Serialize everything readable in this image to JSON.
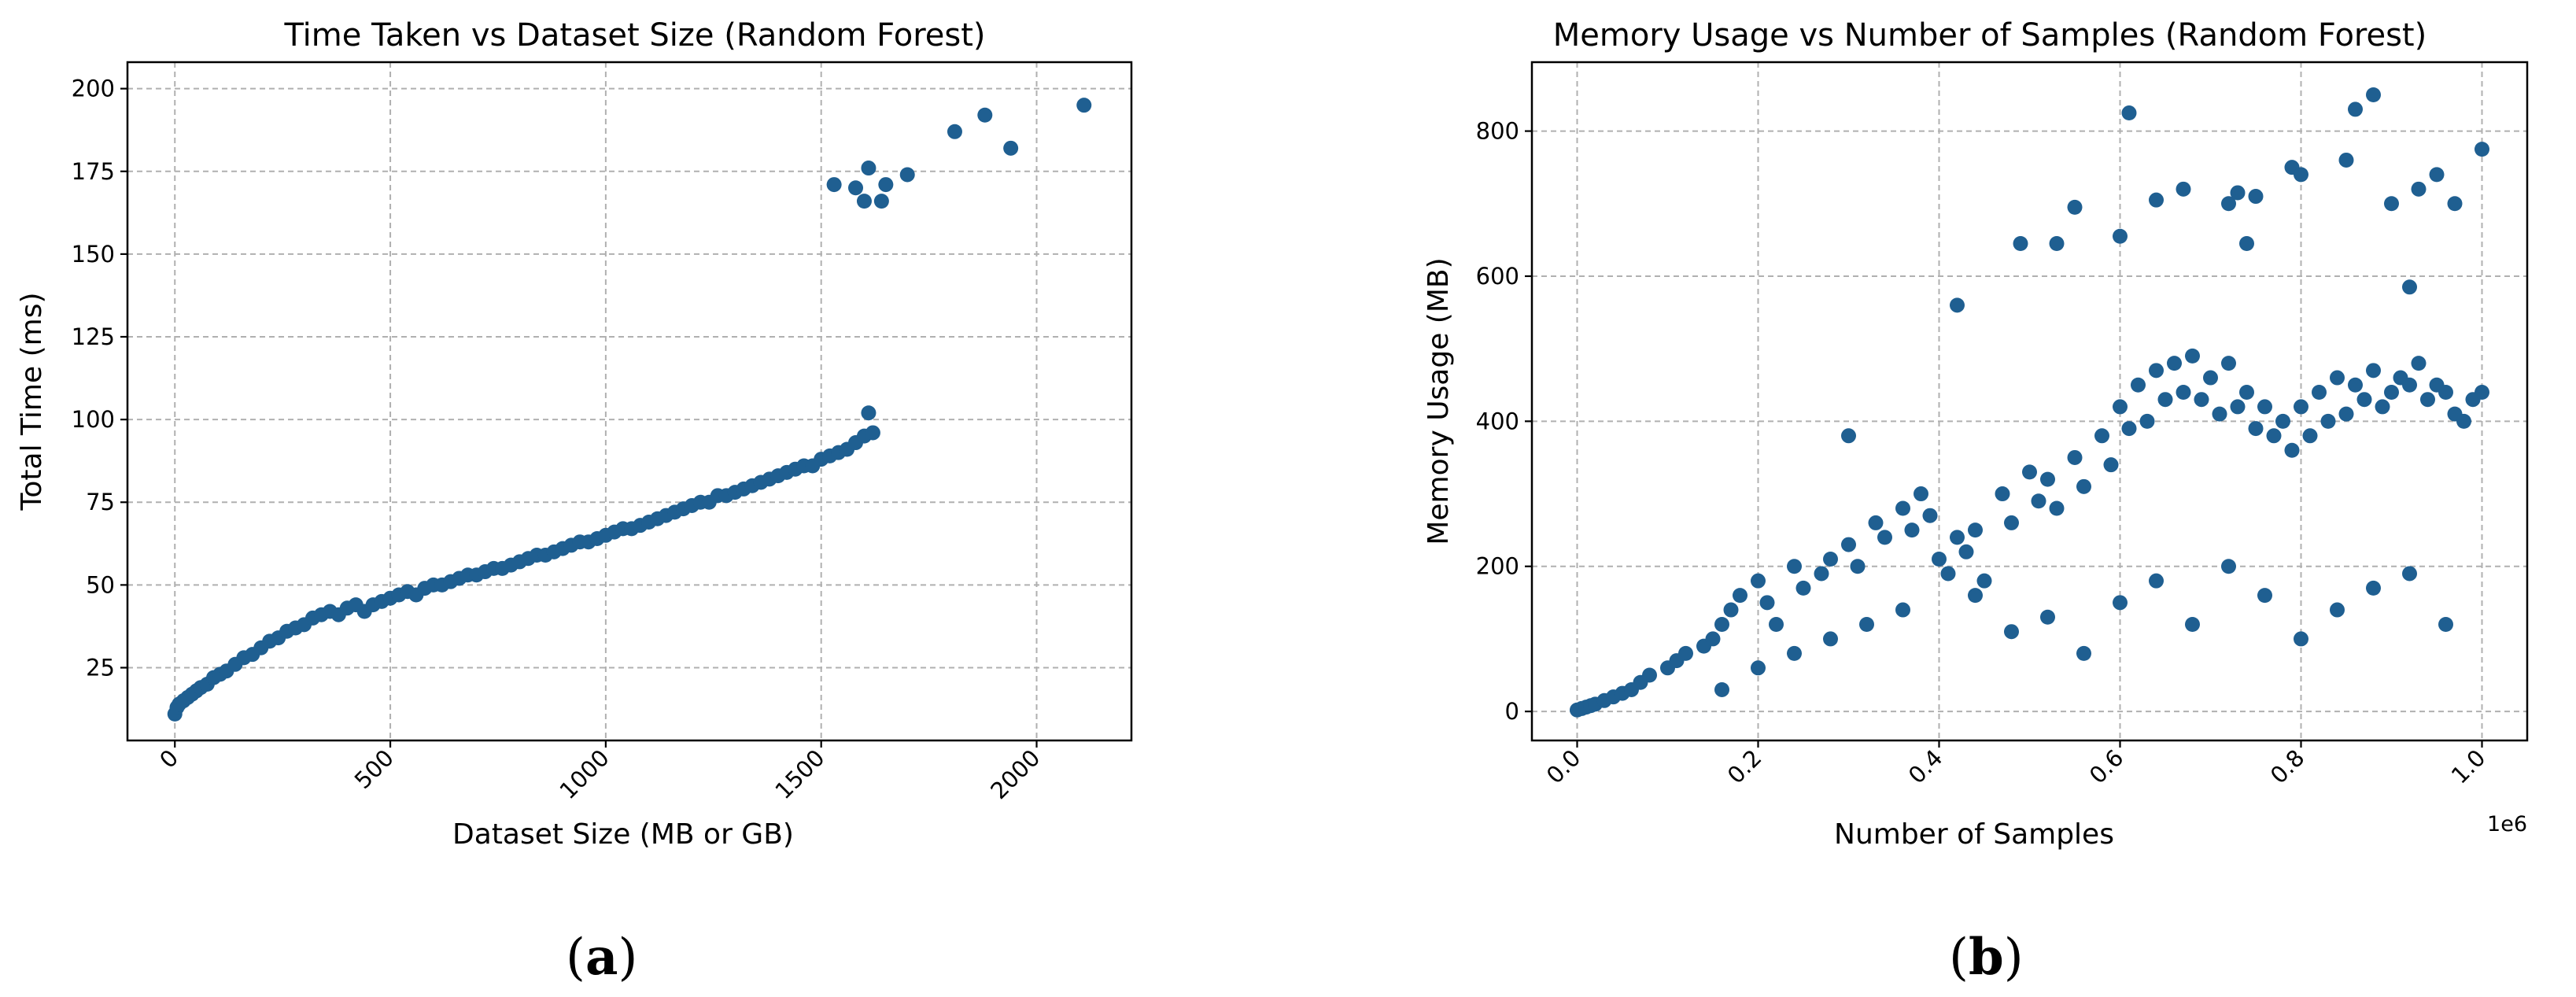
{
  "chart_data": [
    {
      "type": "scatter",
      "title": "Time Taken vs Dataset Size (Random Forest)",
      "xlabel": "Dataset Size (MB or GB)",
      "ylabel": "Total Time (ms)",
      "xlim": [
        -110,
        2220
      ],
      "ylim": [
        3,
        208
      ],
      "xticks": [
        0,
        500,
        1000,
        1500,
        2000
      ],
      "yticks": [
        25,
        50,
        75,
        100,
        125,
        150,
        175,
        200
      ],
      "grid": true,
      "marker_color": "#1f5f91",
      "caption": "(a)",
      "series": [
        {
          "x": [
            0,
            5,
            10,
            20,
            30,
            40,
            50,
            60,
            75,
            90,
            105,
            120,
            140,
            160,
            180,
            200,
            220,
            240,
            260,
            280,
            300,
            320,
            340,
            360,
            380,
            400,
            420,
            440,
            460,
            480,
            500,
            520,
            540,
            560,
            580,
            600,
            620,
            640,
            660,
            680,
            700,
            720,
            740,
            760,
            780,
            800,
            820,
            840,
            860,
            880,
            900,
            920,
            940,
            960,
            980,
            1000,
            1020,
            1040,
            1060,
            1080,
            1100,
            1120,
            1140,
            1160,
            1180,
            1200,
            1220,
            1240,
            1260,
            1280,
            1300,
            1320,
            1340,
            1360,
            1380,
            1400,
            1420,
            1440,
            1460,
            1480,
            1500,
            1520,
            1540,
            1560,
            1580,
            1600,
            1610,
            1530,
            1580,
            1600,
            1610,
            1640,
            1650,
            1700,
            1810,
            1880,
            1940,
            2110,
            1620
          ],
          "y": [
            11,
            13,
            14,
            15,
            16,
            17,
            18,
            19,
            20,
            22,
            23,
            24,
            26,
            28,
            29,
            31,
            33,
            34,
            36,
            37,
            38,
            40,
            41,
            42,
            41,
            43,
            44,
            42,
            44,
            45,
            46,
            47,
            48,
            47,
            49,
            50,
            50,
            51,
            52,
            53,
            53,
            54,
            55,
            55,
            56,
            57,
            58,
            59,
            59,
            60,
            61,
            62,
            63,
            63,
            64,
            65,
            66,
            67,
            67,
            68,
            69,
            70,
            71,
            72,
            73,
            74,
            75,
            75,
            77,
            77,
            78,
            79,
            80,
            81,
            82,
            83,
            84,
            85,
            86,
            86,
            88,
            89,
            90,
            91,
            93,
            95,
            102,
            171,
            170,
            166,
            176,
            166,
            171,
            174,
            187,
            192,
            182,
            195,
            96
          ]
        }
      ]
    },
    {
      "type": "scatter",
      "title": "Memory Usage vs Number of Samples (Random Forest)",
      "xlabel": "Number of Samples",
      "ylabel": "Memory Usage (MB)",
      "x_offset_label": "1e6",
      "xlim": [
        -0.05,
        1.05
      ],
      "ylim": [
        -40,
        895
      ],
      "xticks": [
        0.0,
        0.2,
        0.4,
        0.6,
        0.8,
        1.0
      ],
      "xtick_labels": [
        "0.0",
        "0.2",
        "0.4",
        "0.6",
        "0.8",
        "1.0"
      ],
      "yticks": [
        0,
        200,
        400,
        600,
        800
      ],
      "grid": true,
      "marker_color": "#1f5f91",
      "caption": "(b)",
      "series": [
        {
          "x": [
            0.0,
            0.005,
            0.01,
            0.015,
            0.02,
            0.03,
            0.04,
            0.05,
            0.06,
            0.07,
            0.08,
            0.1,
            0.11,
            0.12,
            0.14,
            0.15,
            0.16,
            0.17,
            0.18,
            0.2,
            0.21,
            0.22,
            0.24,
            0.25,
            0.27,
            0.28,
            0.3,
            0.31,
            0.33,
            0.34,
            0.36,
            0.37,
            0.38,
            0.39,
            0.4,
            0.41,
            0.42,
            0.43,
            0.44,
            0.45,
            0.47,
            0.48,
            0.5,
            0.51,
            0.52,
            0.53,
            0.55,
            0.56,
            0.58,
            0.59,
            0.6,
            0.61,
            0.62,
            0.63,
            0.64,
            0.65,
            0.66,
            0.67,
            0.68,
            0.69,
            0.7,
            0.71,
            0.72,
            0.73,
            0.74,
            0.75,
            0.76,
            0.77,
            0.78,
            0.79,
            0.8,
            0.81,
            0.82,
            0.83,
            0.84,
            0.85,
            0.86,
            0.87,
            0.88,
            0.89,
            0.9,
            0.91,
            0.92,
            0.93,
            0.94,
            0.95,
            0.96,
            0.97,
            0.98,
            0.99,
            1.0,
            0.16,
            0.2,
            0.24,
            0.28,
            0.32,
            0.36,
            0.44,
            0.48,
            0.52,
            0.56,
            0.6,
            0.64,
            0.68,
            0.72,
            0.76,
            0.8,
            0.84,
            0.88,
            0.92,
            0.96,
            0.3,
            0.42,
            0.49,
            0.53,
            0.55,
            0.6,
            0.61,
            0.64,
            0.67,
            0.72,
            0.73,
            0.75,
            0.79,
            0.8,
            0.85,
            0.86,
            0.88,
            0.9,
            0.93,
            0.95,
            0.97,
            1.0,
            0.74,
            0.92
          ],
          "y": [
            2,
            4,
            6,
            8,
            10,
            15,
            20,
            25,
            30,
            40,
            50,
            60,
            70,
            80,
            90,
            100,
            120,
            140,
            160,
            180,
            150,
            120,
            200,
            170,
            190,
            210,
            230,
            200,
            260,
            240,
            280,
            250,
            300,
            270,
            210,
            190,
            240,
            220,
            250,
            180,
            300,
            260,
            330,
            290,
            320,
            280,
            350,
            310,
            380,
            340,
            420,
            390,
            450,
            400,
            470,
            430,
            480,
            440,
            490,
            430,
            460,
            410,
            480,
            420,
            440,
            390,
            420,
            380,
            400,
            360,
            420,
            380,
            440,
            400,
            460,
            410,
            450,
            430,
            470,
            420,
            440,
            460,
            450,
            480,
            430,
            450,
            440,
            410,
            400,
            430,
            440,
            30,
            60,
            80,
            100,
            120,
            140,
            160,
            110,
            130,
            80,
            150,
            180,
            120,
            200,
            160,
            100,
            140,
            170,
            190,
            120,
            380,
            560,
            645,
            645,
            695,
            655,
            825,
            705,
            720,
            700,
            715,
            710,
            750,
            740,
            760,
            830,
            850,
            700,
            720,
            740,
            700,
            775,
            645,
            585
          ]
        }
      ]
    }
  ]
}
